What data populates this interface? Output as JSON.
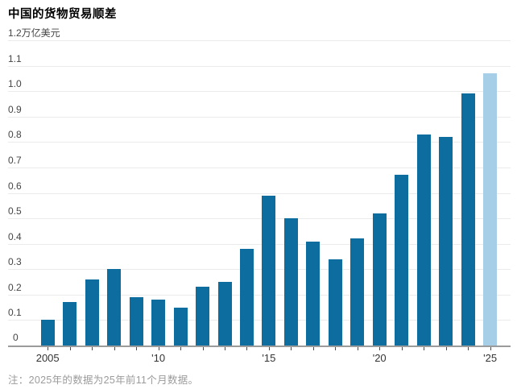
{
  "header": {
    "title": "中国的货物贸易顺差"
  },
  "footer": {
    "note": "注：2025年的数据为25年前11个月数据。"
  },
  "chart_data": {
    "type": "bar",
    "title": "中国的货物贸易顺差",
    "unit_label": "万亿美元",
    "y_top_label": "1.2万亿美元",
    "categories": [
      2005,
      2006,
      2007,
      2008,
      2009,
      2010,
      2011,
      2012,
      2013,
      2014,
      2015,
      2016,
      2017,
      2018,
      2019,
      2020,
      2021,
      2022,
      2023,
      2024,
      2025
    ],
    "values": [
      0.1,
      0.17,
      0.26,
      0.3,
      0.19,
      0.18,
      0.15,
      0.23,
      0.25,
      0.38,
      0.59,
      0.5,
      0.41,
      0.34,
      0.42,
      0.52,
      0.67,
      0.83,
      0.82,
      0.99,
      1.07
    ],
    "highlight_last": true,
    "bar_color": "#0d6d9e",
    "highlight_color": "#a6cee7",
    "gridline_color": "#ebebeb",
    "axis_color": "#9b9b9b",
    "ylim": [
      0,
      1.2
    ],
    "ytick_step": 0.1,
    "y_zero_label": "0",
    "xtick_labels": {
      "0": "2005",
      "5": "'10",
      "10": "'15",
      "15": "'20",
      "20": "'25"
    },
    "grid": true,
    "legend": "none",
    "note": "注：2025年的数据为25年前11个月数据。"
  }
}
